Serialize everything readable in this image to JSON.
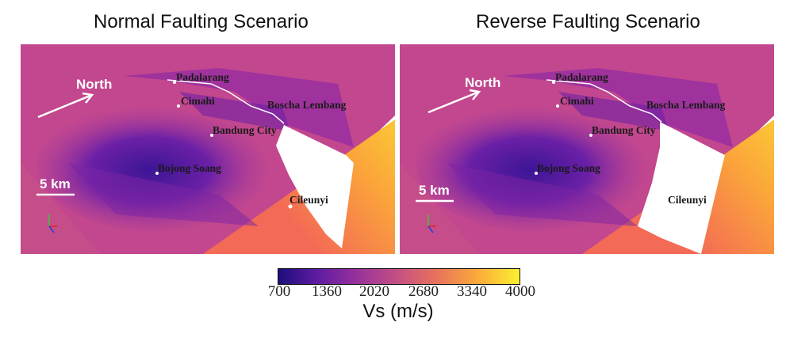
{
  "panels": [
    {
      "title": "Normal Faulting Scenario",
      "north_label": "North",
      "scale_label": "5 km",
      "places": [
        "Padalarang",
        "Cimahi",
        "Boscha Lembang",
        "Bandung City",
        "Bojong Soang",
        "Cileunyi"
      ]
    },
    {
      "title": "Reverse Faulting Scenario",
      "north_label": "North",
      "scale_label": "5 km",
      "places": [
        "Padalarang",
        "Cimahi",
        "Boscha Lembang",
        "Bandung City",
        "Bojong Soang",
        "Cileunyi"
      ]
    }
  ],
  "colorbar": {
    "title": "Vs (m/s)",
    "ticks": [
      "700",
      "1360",
      "2020",
      "2680",
      "3340",
      "4000"
    ],
    "colors": [
      "#1d0e7a",
      "#8f2d9e",
      "#e9735c",
      "#fcef30"
    ]
  }
}
